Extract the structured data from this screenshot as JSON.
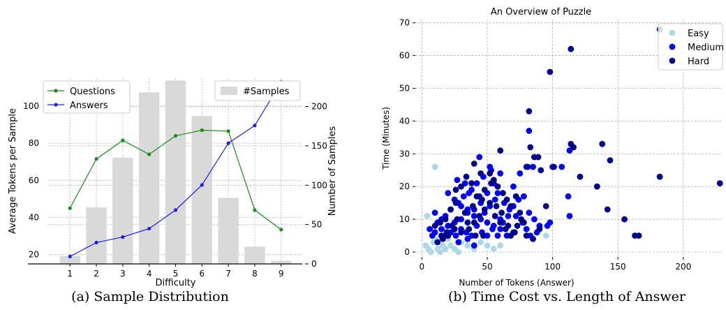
{
  "captions": {
    "left": "(a)  Sample Distribution",
    "right": "(b) Time Cost vs. Length of Answer"
  },
  "chart_data": [
    {
      "type": "bar+line",
      "title": "",
      "xlabel": "Difficulty",
      "ylabel": "Average Tokens per Sample",
      "y2label": "Number of Samples",
      "categories": [
        1,
        2,
        3,
        4,
        5,
        6,
        7,
        8,
        9
      ],
      "xticks": [
        "1",
        "2",
        "3",
        "4",
        "5",
        "6",
        "7",
        "8",
        "9"
      ],
      "ylim": [
        15,
        115
      ],
      "yticks": [
        20,
        40,
        60,
        80,
        100
      ],
      "y2lim": [
        0,
        236
      ],
      "y2ticks": [
        0,
        50,
        100,
        150,
        200
      ],
      "bars": {
        "name": "#Samples",
        "color": "#d9d9d9",
        "axis": "right",
        "values": [
          10,
          72,
          135,
          218,
          233,
          188,
          84,
          22,
          4
        ]
      },
      "series": [
        {
          "name": "Questions",
          "color": "#1a8a1a",
          "axis": "left",
          "values": [
            45,
            71.5,
            81.5,
            74,
            84,
            87,
            86.5,
            44,
            33.5
          ]
        },
        {
          "name": "Answers",
          "color": "#1f1fdd",
          "axis": "left",
          "values": [
            19,
            26.5,
            29.5,
            34,
            44,
            57.5,
            80,
            89.5,
            113
          ]
        }
      ],
      "legend_lines": "top-left",
      "legend_bars": "top-right",
      "grid": true
    },
    {
      "type": "scatter",
      "title": "An Overview of Puzzle",
      "xlabel": "Number of Tokens (Answer)",
      "ylabel": "Time (Minutes)",
      "xlim": [
        -5,
        230
      ],
      "ylim": [
        -1.5,
        71
      ],
      "xticks": [
        0,
        50,
        100,
        150,
        200
      ],
      "yticks": [
        0,
        10,
        20,
        30,
        40,
        50,
        60,
        70
      ],
      "legend": "top-right",
      "grid": true,
      "series": [
        {
          "name": "Easy",
          "color": "#add8e6",
          "points": [
            [
              10,
              26
            ],
            [
              4,
              11
            ],
            [
              3,
              2
            ],
            [
              5,
              1
            ],
            [
              7,
              0
            ],
            [
              9,
              3
            ],
            [
              12,
              1
            ],
            [
              14,
              0
            ],
            [
              16,
              2
            ],
            [
              18,
              1
            ],
            [
              20,
              4
            ],
            [
              22,
              2
            ],
            [
              25,
              1
            ],
            [
              30,
              3
            ],
            [
              28,
              0
            ],
            [
              35,
              2
            ],
            [
              40,
              1
            ],
            [
              45,
              3
            ],
            [
              50,
              2
            ],
            [
              55,
              1
            ],
            [
              60,
              2
            ],
            [
              95,
              5
            ],
            [
              8,
              5
            ],
            [
              12,
              4
            ],
            [
              18,
              7
            ],
            [
              24,
              6
            ]
          ]
        },
        {
          "name": "Medium",
          "color": "#0000ff",
          "points": [
            [
              82,
              37
            ],
            [
              80,
              26
            ],
            [
              100,
              26
            ],
            [
              107,
              26
            ],
            [
              113,
              31
            ],
            [
              112,
              17
            ],
            [
              113,
              11
            ],
            [
              98,
              9
            ],
            [
              96,
              8
            ],
            [
              85,
              26
            ],
            [
              75,
              24
            ],
            [
              70,
              20
            ],
            [
              60,
              24
            ],
            [
              52,
              26
            ],
            [
              44,
              29
            ],
            [
              55,
              21
            ],
            [
              50,
              18
            ],
            [
              45,
              15
            ],
            [
              40,
              13
            ],
            [
              35,
              12
            ],
            [
              30,
              10
            ],
            [
              25,
              9
            ],
            [
              20,
              8
            ],
            [
              15,
              7
            ],
            [
              10,
              6
            ],
            [
              6,
              7
            ],
            [
              8,
              5
            ],
            [
              12,
              9
            ],
            [
              18,
              11
            ],
            [
              22,
              13
            ],
            [
              28,
              15
            ],
            [
              32,
              17
            ],
            [
              38,
              19
            ],
            [
              42,
              21
            ],
            [
              47,
              23
            ],
            [
              53,
              25
            ],
            [
              58,
              18
            ],
            [
              63,
              15
            ],
            [
              67,
              13
            ],
            [
              72,
              11
            ],
            [
              77,
              9
            ],
            [
              80,
              7
            ],
            [
              83,
              5
            ],
            [
              88,
              6
            ],
            [
              65,
              5
            ],
            [
              70,
              6
            ],
            [
              60,
              7
            ],
            [
              55,
              8
            ],
            [
              50,
              9
            ],
            [
              45,
              10
            ],
            [
              40,
              11
            ],
            [
              35,
              13
            ],
            [
              30,
              14
            ],
            [
              25,
              16
            ],
            [
              20,
              18
            ],
            [
              15,
              10
            ],
            [
              10,
              12
            ],
            [
              18,
              5
            ],
            [
              22,
              6
            ],
            [
              26,
              5
            ],
            [
              30,
              7
            ],
            [
              34,
              6
            ],
            [
              38,
              5
            ],
            [
              42,
              8
            ],
            [
              46,
              6
            ],
            [
              50,
              5
            ],
            [
              54,
              7
            ],
            [
              58,
              5
            ],
            [
              62,
              9
            ],
            [
              66,
              11
            ],
            [
              70,
              14
            ],
            [
              74,
              16
            ],
            [
              78,
              17
            ],
            [
              82,
              12
            ],
            [
              86,
              10
            ],
            [
              90,
              8
            ],
            [
              40,
              2
            ],
            [
              35,
              4
            ],
            [
              28,
              3
            ],
            [
              60,
              10
            ],
            [
              48,
              12
            ],
            [
              52,
              14
            ],
            [
              56,
              16
            ],
            [
              44,
              17
            ],
            [
              36,
              18
            ],
            [
              33,
              21
            ],
            [
              27,
              22
            ]
          ]
        },
        {
          "name": "Hard",
          "color": "#00008b",
          "points": [
            [
              182,
              68
            ],
            [
              114,
              62
            ],
            [
              98,
              55
            ],
            [
              82,
              43
            ],
            [
              83,
              32
            ],
            [
              86,
              29
            ],
            [
              89,
              29
            ],
            [
              81,
              26
            ],
            [
              91,
              25
            ],
            [
              60,
              31
            ],
            [
              95,
              14
            ],
            [
              101,
              26
            ],
            [
              116,
              32
            ],
            [
              121,
              23
            ],
            [
              114,
              33
            ],
            [
              138,
              33
            ],
            [
              144,
              28
            ],
            [
              134,
              20
            ],
            [
              142,
              13
            ],
            [
              155,
              10
            ],
            [
              163,
              5
            ],
            [
              166,
              5
            ],
            [
              182,
              23
            ],
            [
              228,
              21
            ],
            [
              40,
              27
            ],
            [
              45,
              24
            ],
            [
              52,
              24
            ],
            [
              55,
              22
            ],
            [
              58,
              20
            ],
            [
              62,
              18
            ],
            [
              65,
              16
            ],
            [
              68,
              14
            ],
            [
              72,
              17
            ],
            [
              75,
              12
            ],
            [
              78,
              9
            ],
            [
              80,
              5
            ],
            [
              85,
              4
            ],
            [
              90,
              7
            ],
            [
              48,
              19
            ],
            [
              42,
              17
            ],
            [
              38,
              21
            ],
            [
              34,
              23
            ],
            [
              30,
              20
            ],
            [
              26,
              15
            ],
            [
              22,
              13
            ],
            [
              18,
              10
            ],
            [
              14,
              9
            ],
            [
              10,
              8
            ],
            [
              12,
              3
            ],
            [
              16,
              4
            ],
            [
              20,
              5
            ],
            [
              25,
              7
            ],
            [
              30,
              6
            ],
            [
              35,
              9
            ],
            [
              40,
              9
            ],
            [
              44,
              11
            ],
            [
              48,
              13
            ],
            [
              52,
              15
            ],
            [
              56,
              11
            ],
            [
              60,
              9
            ],
            [
              64,
              7
            ],
            [
              68,
              5
            ],
            [
              73,
              8
            ],
            [
              76,
              10
            ],
            [
              53,
              21
            ],
            [
              46,
              16
            ],
            [
              39,
              14
            ],
            [
              33,
              12
            ],
            [
              27,
              10
            ],
            [
              23,
              8
            ],
            [
              19,
              6
            ],
            [
              15,
              5
            ],
            [
              57,
              14
            ],
            [
              61,
              12
            ],
            [
              66,
              8
            ],
            [
              71,
              6
            ],
            [
              26,
              19
            ],
            [
              41,
              5
            ],
            [
              47,
              5
            ],
            [
              36,
              7
            ]
          ]
        }
      ]
    }
  ]
}
